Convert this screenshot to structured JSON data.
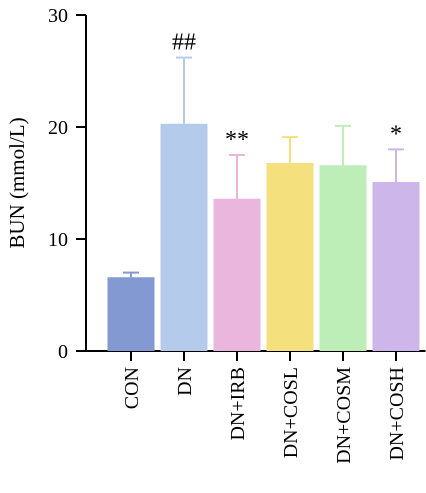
{
  "chart_data": {
    "type": "bar",
    "title": "",
    "xlabel": "",
    "ylabel": "BUN (mmol/L)",
    "ylim": [
      0,
      30
    ],
    "yticks": [
      0,
      10,
      20,
      30
    ],
    "grid": false,
    "categories": [
      "CON",
      "DN",
      "DN+IRB",
      "DN+COSL",
      "DN+COSM",
      "DN+COSH"
    ],
    "values": [
      6.5,
      20.2,
      13.5,
      16.7,
      16.5,
      15.0
    ],
    "errors": [
      0.5,
      6.0,
      4.0,
      2.4,
      3.6,
      3.0
    ],
    "annotations": [
      "",
      "##",
      "**",
      "",
      "",
      "*"
    ],
    "colors": [
      "#8299d1",
      "#b4cbeb",
      "#eab6de",
      "#f5e07e",
      "#bdeeb8",
      "#cdb6e9"
    ],
    "error_colors": [
      "#8299d1",
      "#b4cbeb",
      "#eab6de",
      "#f5e07e",
      "#bdeeb8",
      "#cdb6e9"
    ]
  }
}
